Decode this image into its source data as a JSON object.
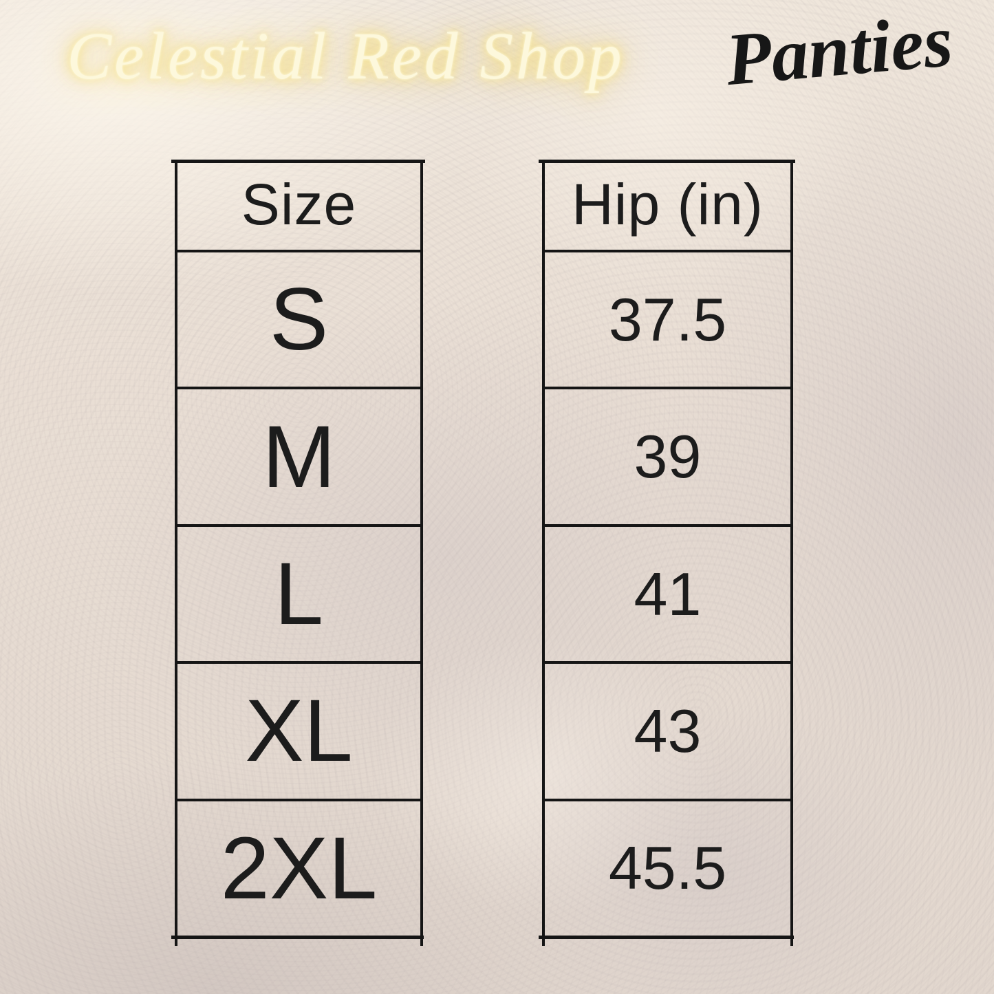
{
  "header": {
    "brand": "Celestial Red Shop",
    "product": "Panties"
  },
  "chart_data": {
    "type": "table",
    "columns": [
      "Size",
      "Hip (in)"
    ],
    "rows": [
      [
        "S",
        "37.5"
      ],
      [
        "M",
        "39"
      ],
      [
        "L",
        "41"
      ],
      [
        "XL",
        "43"
      ],
      [
        "2XL",
        "45.5"
      ]
    ]
  },
  "colors": {
    "background": "#e8ddd3",
    "neon_yellow": "#f3dc83",
    "ink": "#1c1c1c",
    "table_border": "#151515"
  }
}
